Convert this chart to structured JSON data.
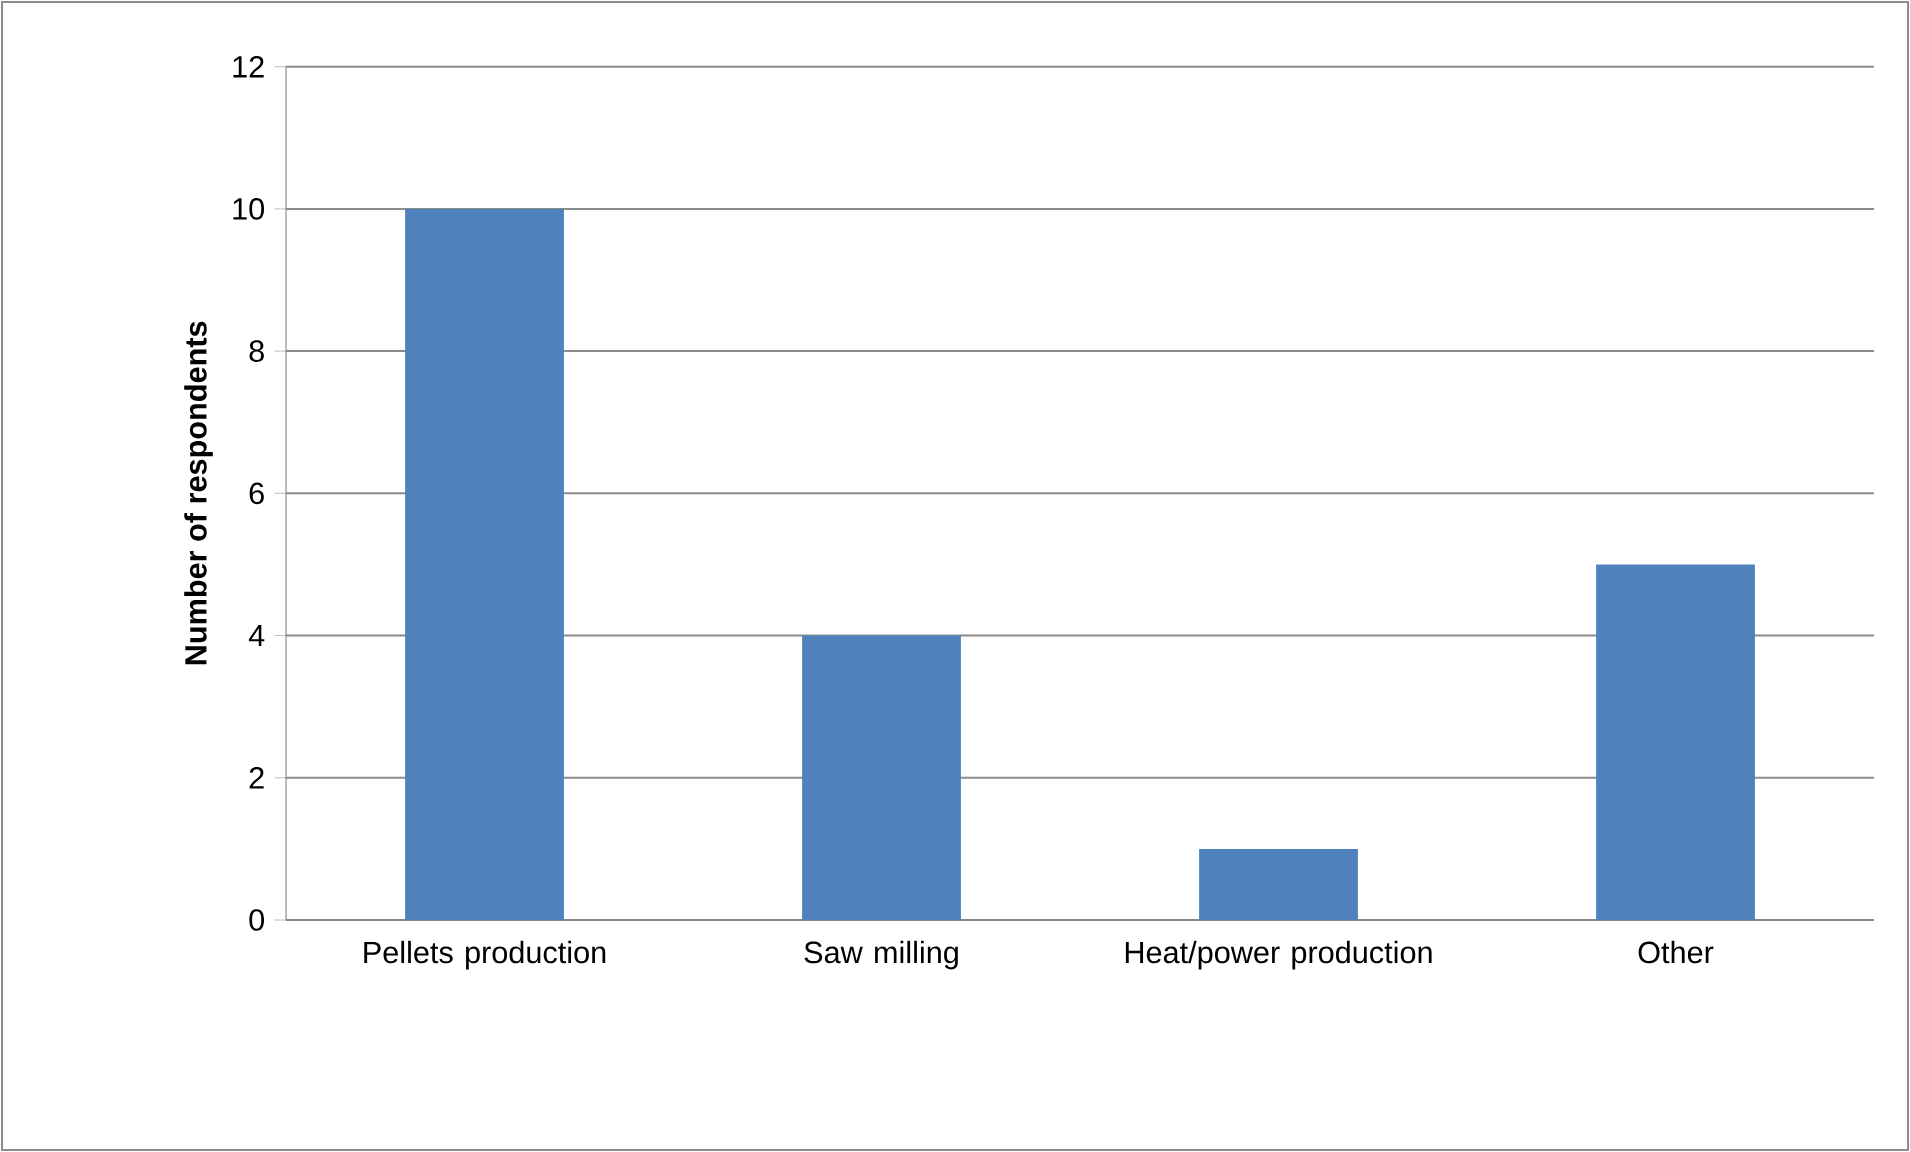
{
  "chart_data": {
    "type": "bar",
    "ylabel": "Number of respondents",
    "categories": [
      "Pellets production",
      "Saw milling",
      "Heat/power production",
      "Other"
    ],
    "values": [
      10,
      4,
      1,
      5
    ],
    "color": "#4f81bd",
    "ylim": [
      0,
      12
    ],
    "yticks": [
      0,
      2,
      4,
      6,
      8,
      10,
      12
    ],
    "grid": "y"
  }
}
